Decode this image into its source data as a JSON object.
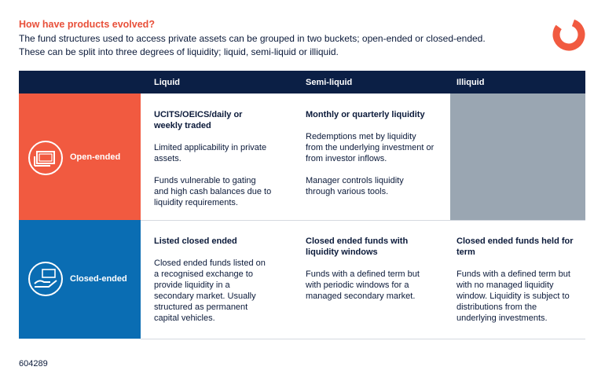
{
  "header": {
    "title": "How have products evolved?",
    "subtitle": [
      "The fund structures used to access private assets can be grouped in two buckets; open-ended or closed-ended.",
      "These can be split into three degrees of liquidity; liquid, semi-liquid or illiquid."
    ]
  },
  "table": {
    "columns": [
      "Liquid",
      "Semi-liquid",
      "Illiquid"
    ],
    "rows": [
      {
        "label": "Open-ended",
        "cells": [
          {
            "title": "UCITS/OEICS/daily or weekly traded",
            "paragraphs": [
              "Limited applicability in private assets.",
              "Funds vulnerable to gating and high cash balances due to liquidity requirements."
            ]
          },
          {
            "title": "Monthly or quarterly liquidity",
            "paragraphs": [
              "Redemptions met by liquidity from the underlying investment or from investor inflows.",
              "Manager controls liquidity through various tools."
            ]
          }
        ]
      },
      {
        "label": "Closed-ended",
        "cells": [
          {
            "title": "Listed closed ended",
            "paragraphs": [
              "Closed ended funds listed on a recognised exchange to provide liquidity in a secondary market. Usually structured as permanent capital vehicles."
            ]
          },
          {
            "title": "Closed ended funds with liquidity windows",
            "paragraphs": [
              "Funds with a defined term but with periodic windows for a managed secondary market."
            ]
          },
          {
            "title": "Closed ended funds held for term",
            "paragraphs": [
              "Funds with a defined term but with no managed liquidity window. Liquidity is subject to distributions from the underlying investments."
            ]
          }
        ]
      }
    ]
  },
  "footer": "604289"
}
